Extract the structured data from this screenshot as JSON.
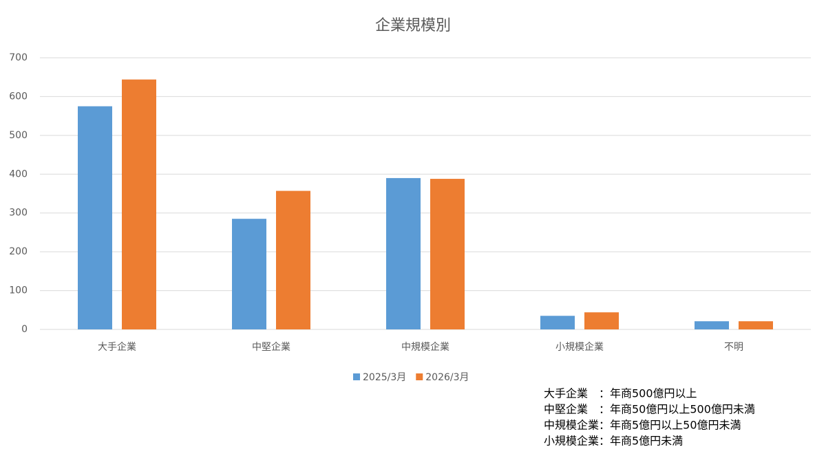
{
  "chart_data": {
    "type": "bar",
    "title": "企業規模別",
    "categories": [
      "大手企業",
      "中堅企業",
      "中規模企業",
      "小規模企業",
      "不明"
    ],
    "series": [
      {
        "name": "2025/3月",
        "color": "#5b9bd5",
        "values": [
          575,
          285,
          390,
          35,
          21
        ]
      },
      {
        "name": "2026/3月",
        "color": "#ed7d31",
        "values": [
          644,
          357,
          388,
          44,
          21
        ]
      }
    ],
    "ylim": [
      0,
      700
    ],
    "yticks": [
      0,
      100,
      200,
      300,
      400,
      500,
      600,
      700
    ],
    "grid": true,
    "legend": "bottom",
    "annotations": [
      "大手企業　：年商500億円以上",
      "中堅企業　：年商50億円以上500億円未満",
      "中規模企業：年商5億円以上50億円未満",
      "小規模企業：年商5億円未満"
    ]
  }
}
